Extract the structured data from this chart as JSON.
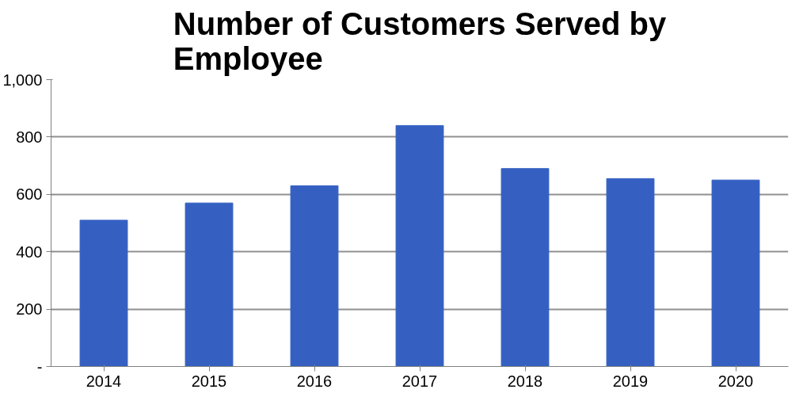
{
  "chart_data": {
    "type": "bar",
    "title": "Number of Customers Served by Employee",
    "categories": [
      "2014",
      "2015",
      "2016",
      "2017",
      "2018",
      "2019",
      "2020"
    ],
    "values": [
      510,
      570,
      630,
      840,
      690,
      655,
      650
    ],
    "color": "#3560c2",
    "ylim": [
      0,
      1000
    ],
    "yticks": [
      {
        "value": 0,
        "label": "-"
      },
      200,
      400,
      600,
      800,
      {
        "value": 1000,
        "label": "1,000"
      }
    ],
    "grid": "y"
  }
}
